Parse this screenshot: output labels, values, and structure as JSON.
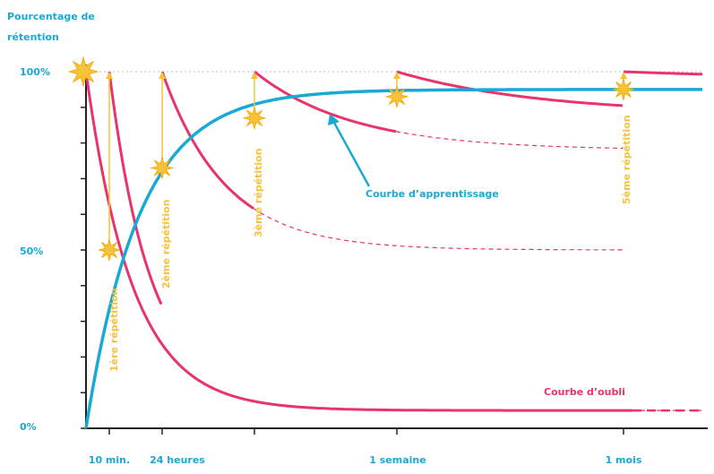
{
  "chart_data": {
    "type": "line",
    "ylabel_line1": "Pourcentage de",
    "ylabel_line2": "rétention",
    "y_ticks": [
      {
        "value": 100,
        "label": "100%"
      },
      {
        "value": 50,
        "label": "50%"
      },
      {
        "value": 0,
        "label": "0%"
      }
    ],
    "x_ticks": [
      {
        "label": "10 min."
      },
      {
        "label": "24 heures"
      },
      {
        "label": ""
      },
      {
        "label": "1 semaine"
      },
      {
        "label": "1 mois"
      }
    ],
    "repetitions": [
      {
        "label": "1ère répétition",
        "retention_before": 50
      },
      {
        "label": "2ème répétition",
        "retention_before": 73
      },
      {
        "label": "3ème répétition",
        "retention_before": 87
      },
      {
        "label": "",
        "retention_before": 93
      },
      {
        "label": "5ème répétition",
        "retention_before": 95
      }
    ],
    "learning_curve_label": "Courbe d’apprentissage",
    "forgetting_curve_label": "Courbe d’oubli",
    "colors": {
      "learning": "#18a9d4",
      "forgetting": "#e8336b",
      "repetition": "#f5c23a"
    }
  }
}
